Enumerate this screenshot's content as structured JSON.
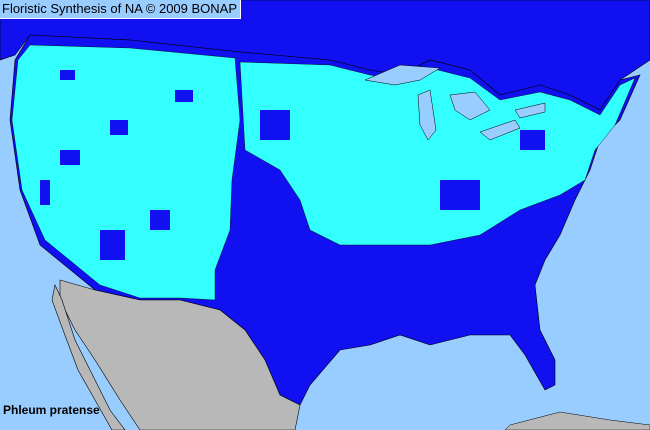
{
  "title": "Floristic Synthesis of NA © 2009 BONAP",
  "species": "Phleum pratense",
  "colors": {
    "ocean": "#99ccff",
    "present_native_region": "#0000ee",
    "present_county": "#33ffff",
    "outside_area": "#b8b8b8",
    "county_lines": "#000000"
  }
}
